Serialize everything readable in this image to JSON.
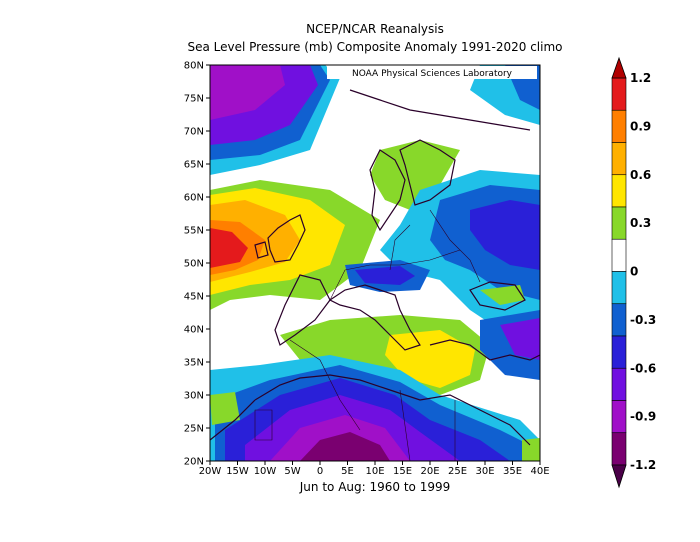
{
  "titles": {
    "line1": "NCEP/NCAR Reanalysis",
    "line2": "Sea Level Pressure (mb) Composite Anomaly 1991-2020 climo"
  },
  "credit": "NOAA Physical Sciences Laboratory",
  "footer": "Jun to Aug: 1960 to 1999",
  "map": {
    "lat_labels": [
      "80N",
      "75N",
      "70N",
      "65N",
      "60N",
      "55N",
      "50N",
      "45N",
      "40N",
      "35N",
      "30N",
      "25N",
      "20N"
    ],
    "lon_labels": [
      "20W",
      "15W",
      "10W",
      "5W",
      "0",
      "5E",
      "10E",
      "15E",
      "20E",
      "25E",
      "30E",
      "35E",
      "40E"
    ],
    "extent": {
      "lon": [
        -20,
        40
      ],
      "lat": [
        20,
        80
      ]
    }
  },
  "colorbar": {
    "labels": [
      "1.2",
      "0.9",
      "0.6",
      "0.3",
      "0",
      "-0.3",
      "-0.6",
      "-0.9",
      "-1.2"
    ],
    "colors": [
      "#e41a1c",
      "#ff7f00",
      "#ffb000",
      "#ffe600",
      "#88d82a",
      "#ffffff",
      "#20c0e8",
      "#1060d0",
      "#2a20d8",
      "#7010e0",
      "#a010c8",
      "#7a0070"
    ]
  }
}
